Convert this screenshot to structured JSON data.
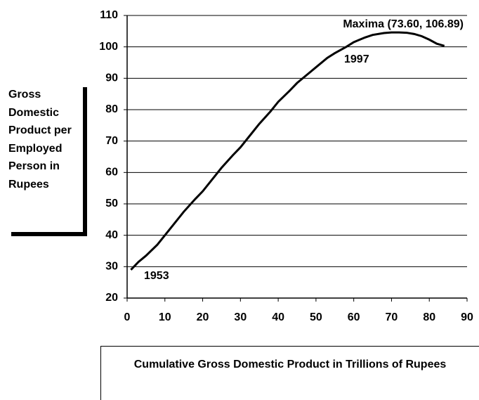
{
  "chart_data": {
    "type": "line",
    "x_label": "Cumulative Gross Domestic Product in Trillions of Rupees",
    "y_label": "Gross Domestic Product per Employed Person in Rupees",
    "annotations": [
      "Maxima (73.60, 106.89)",
      "1953",
      "1997"
    ],
    "series": [
      {
        "color": "#000000",
        "x": [
          1,
          3,
          5,
          8,
          10,
          12,
          15,
          18,
          20,
          23,
          25,
          28,
          30,
          33,
          35,
          38,
          40,
          43,
          45,
          48,
          50,
          53,
          55,
          58,
          60,
          63,
          65,
          68,
          70,
          72,
          74,
          76,
          78,
          80,
          82,
          84
        ],
        "values": [
          29,
          31.5,
          33.5,
          37,
          40,
          43,
          47.5,
          51.5,
          54,
          58.5,
          61.5,
          65.5,
          68,
          72.5,
          75.5,
          79.5,
          82.5,
          86,
          88.5,
          91.5,
          93.5,
          96.5,
          98,
          100,
          101.5,
          103,
          103.8,
          104.4,
          104.6,
          104.6,
          104.5,
          104.1,
          103.4,
          102.3,
          101,
          100.3
        ]
      }
    ],
    "xlim": [
      0,
      90
    ],
    "xticks": [
      0,
      10,
      20,
      30,
      40,
      50,
      60,
      70,
      80,
      90
    ],
    "ylim": [
      20,
      110
    ],
    "yticks": [
      20,
      30,
      40,
      50,
      60,
      70,
      80,
      90,
      100,
      110
    ],
    "grid": true
  }
}
